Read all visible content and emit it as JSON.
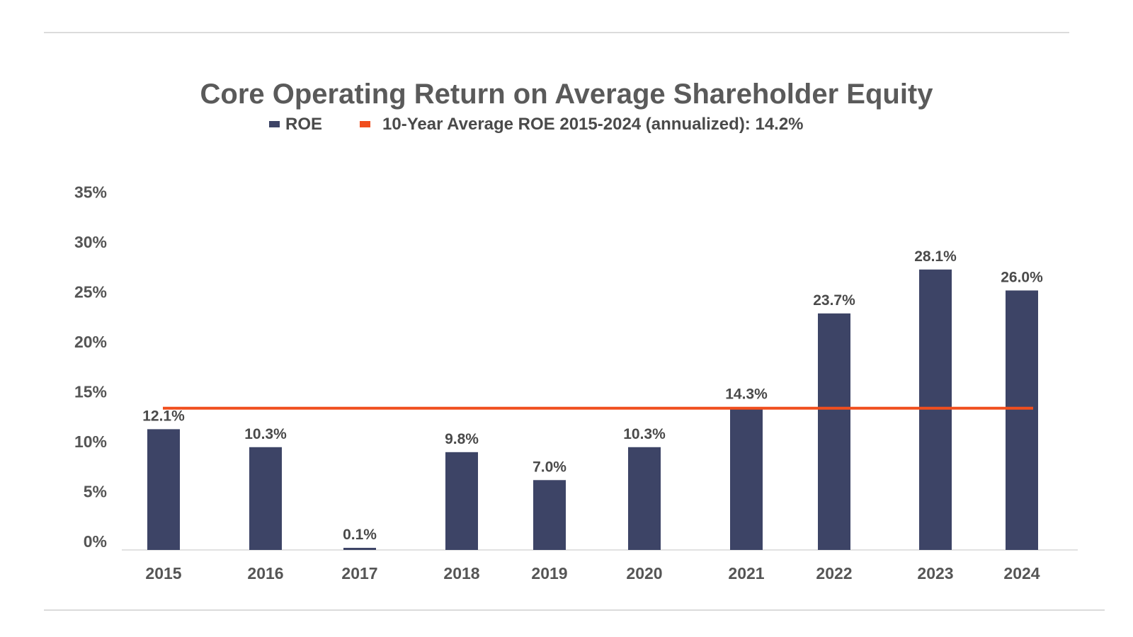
{
  "chart_data": {
    "type": "bar",
    "title": "Core Operating Return on Average Shareholder Equity",
    "categories": [
      "2015",
      "2016",
      "2017",
      "2018",
      "2019",
      "2020",
      "2021",
      "2022",
      "2023",
      "2024"
    ],
    "series": [
      {
        "name": "ROE",
        "color": "#3d4466",
        "values": [
          12.1,
          10.3,
          0.1,
          9.8,
          7.0,
          10.3,
          14.3,
          23.7,
          28.1,
          26.0
        ],
        "data_labels": [
          "12.1%",
          "10.3%",
          "0.1%",
          "9.8%",
          "7.0%",
          "10.3%",
          "14.3%",
          "23.7%",
          "28.1%",
          "26.0%"
        ]
      }
    ],
    "reference_line": {
      "name": "10-Year Average ROE 2015-2024 (annualized): 14.2%",
      "value": 14.2,
      "color": "#f04e1e"
    },
    "ylim": [
      0,
      35
    ],
    "y_ticks": [
      0,
      5,
      10,
      15,
      20,
      25,
      30,
      35
    ],
    "y_tick_labels": [
      "0%",
      "5%",
      "10%",
      "15%",
      "20%",
      "25%",
      "30%",
      "35%"
    ],
    "xlabel": "",
    "ylabel": "",
    "grid": false,
    "legend_position": "top-center"
  }
}
